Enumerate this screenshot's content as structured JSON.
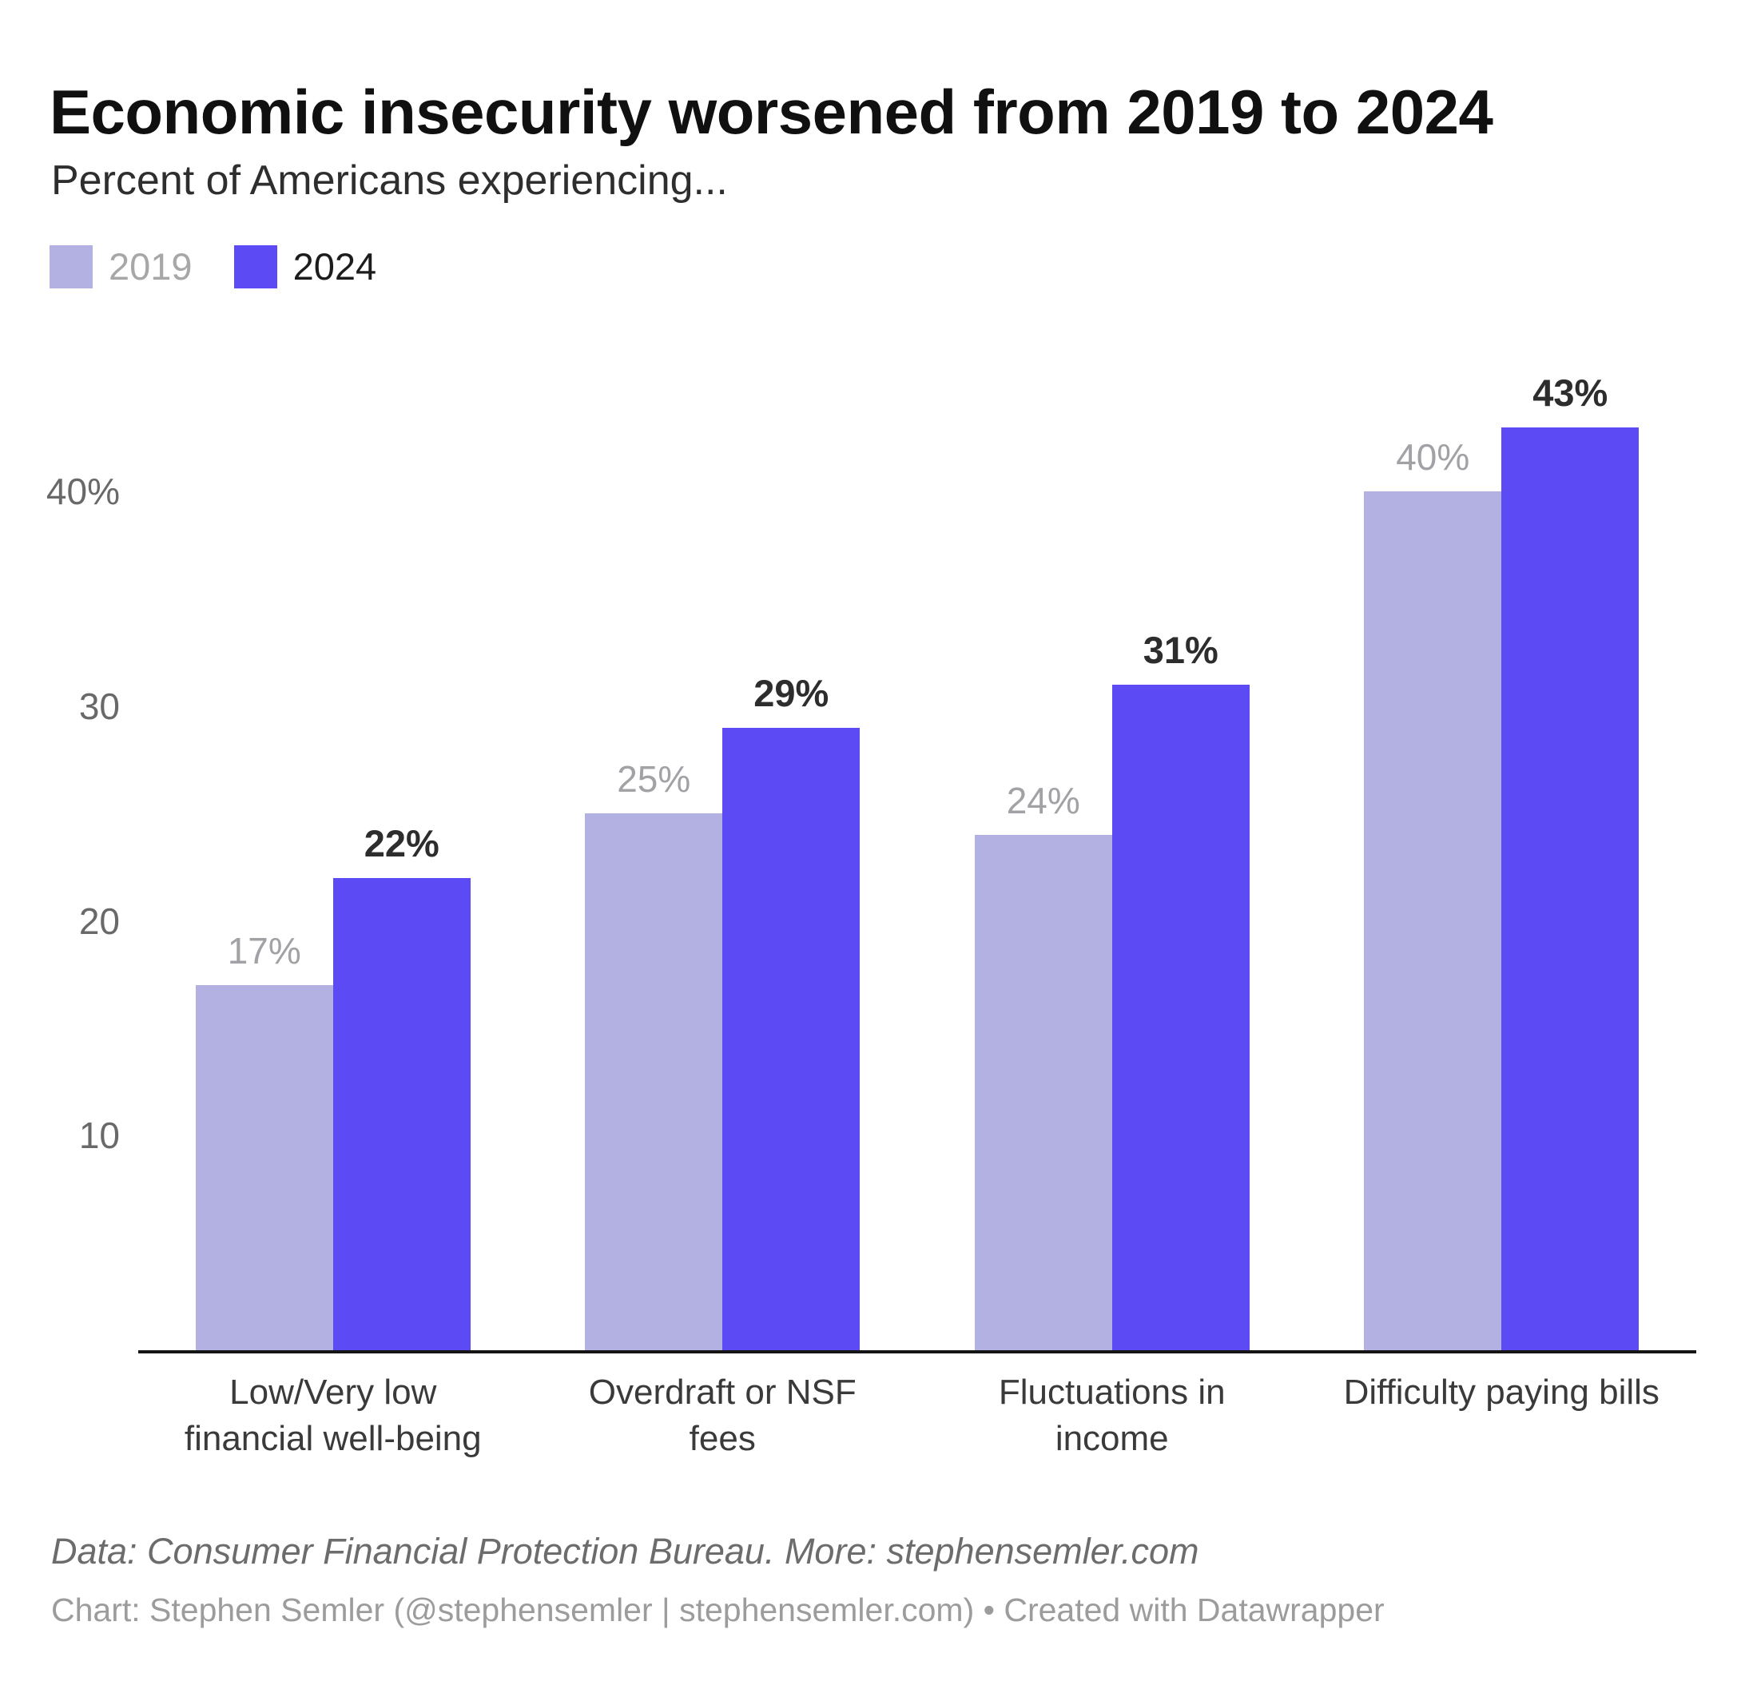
{
  "chart_data": {
    "type": "bar",
    "title": "Economic insecurity worsened from 2019 to 2024",
    "subtitle": "Percent of Americans experiencing...",
    "categories": [
      "Low/Very low\nfinancial well-being",
      "Overdraft or NSF\nfees",
      "Fluctuations in\nincome",
      "Difficulty paying bills"
    ],
    "series": [
      {
        "name": "2019",
        "values": [
          17,
          25,
          24,
          40
        ],
        "color": "#b3b1e1",
        "label_color": "#a1a1a6"
      },
      {
        "name": "2024",
        "values": [
          22,
          29,
          31,
          43
        ],
        "color": "#5c4af4",
        "label_color": "#2d2d2d"
      }
    ],
    "value_suffix": "%",
    "ylim": [
      0,
      45
    ],
    "yticks": [
      {
        "value": 10,
        "label": "10"
      },
      {
        "value": 20,
        "label": "20"
      },
      {
        "value": 30,
        "label": "30"
      },
      {
        "value": 40,
        "label": "40%"
      }
    ],
    "grid": false,
    "legend_position": "top-left",
    "axis_color": "#151515"
  },
  "footer": {
    "source": "Data: Consumer Financial Protection Bureau. More: stephensemler.com",
    "byline": "Chart: Stephen Semler (@stephensemler | stephensemler.com) • Created with Datawrapper"
  }
}
